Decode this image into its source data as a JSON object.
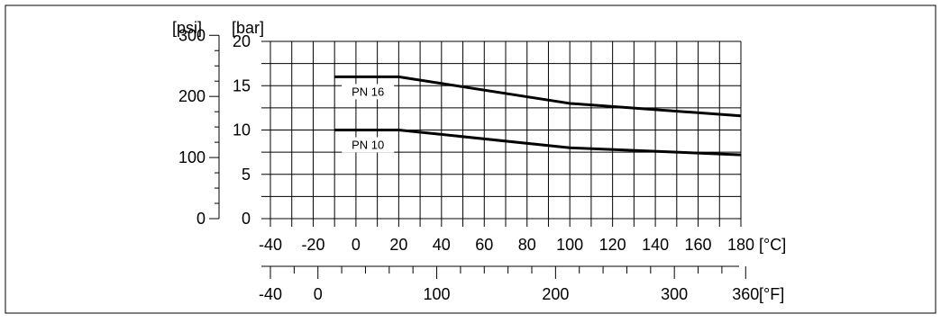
{
  "chart_data": {
    "type": "line",
    "title": "",
    "x_unit_primary": "[°C]",
    "x_unit_secondary": "[°F]",
    "y_unit_primary": "[bar]",
    "y_unit_secondary": "[psi]",
    "xlim": [
      -40,
      180
    ],
    "ylim": [
      0,
      20
    ],
    "x_ticks_c": [
      -40,
      -20,
      0,
      20,
      40,
      60,
      80,
      100,
      120,
      140,
      160,
      180
    ],
    "x_tick_labels_c": [
      "-40",
      "-20",
      "0",
      "20",
      "40",
      "60",
      "80",
      "100",
      "120",
      "140",
      "160",
      "180"
    ],
    "x_ticks_f": [
      -40,
      0,
      100,
      200,
      300,
      360
    ],
    "x_tick_labels_f": [
      "-40",
      "0",
      "100",
      "200",
      "300",
      "360"
    ],
    "y_ticks_bar": [
      0,
      5,
      10,
      15,
      20
    ],
    "y_tick_labels_bar": [
      "0",
      "5",
      "10",
      "15",
      "20"
    ],
    "y_ticks_psi": [
      0,
      100,
      200,
      300
    ],
    "y_tick_labels_psi": [
      "0",
      "100",
      "200",
      "300"
    ],
    "grid": true,
    "series": [
      {
        "name": "PN 16",
        "x": [
          -10,
          20,
          100,
          180
        ],
        "y": [
          16,
          16,
          13,
          11.6
        ]
      },
      {
        "name": "PN 10",
        "x": [
          -10,
          20,
          100,
          180
        ],
        "y": [
          10,
          10,
          8,
          7.2
        ]
      }
    ]
  }
}
